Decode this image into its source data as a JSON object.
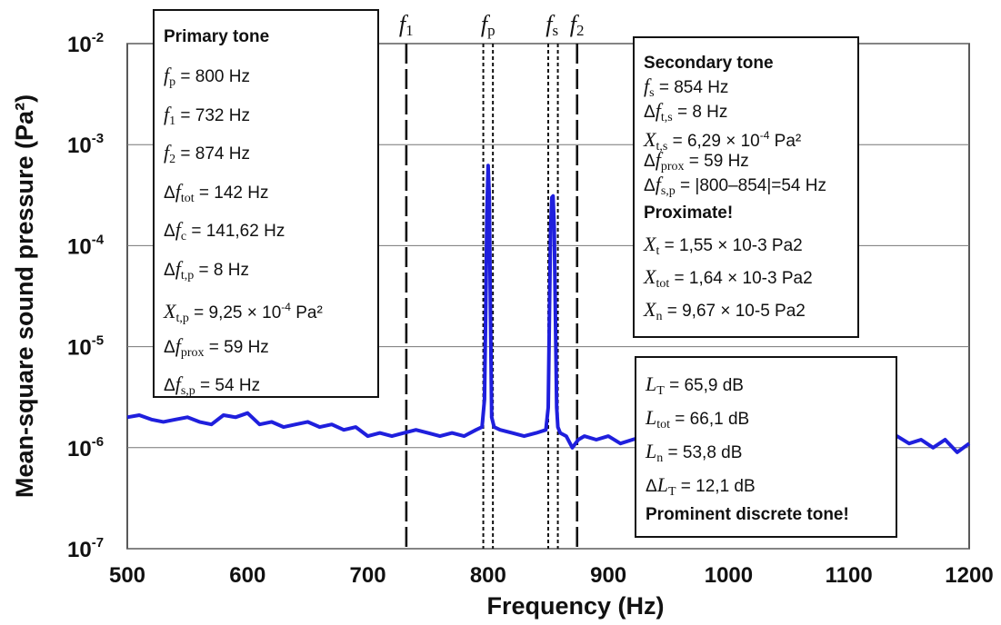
{
  "chart_data": {
    "type": "line",
    "xlabel": "Frequency (Hz)",
    "ylabel": "Mean-square sound pressure (Pa²)",
    "x_ticks": [
      "500",
      "600",
      "700",
      "800",
      "900",
      "1000",
      "1100",
      "1200"
    ],
    "y_ticks": [
      {
        "base": "10",
        "exp": "-2"
      },
      {
        "base": "10",
        "exp": "-3"
      },
      {
        "base": "10",
        "exp": "-4"
      },
      {
        "base": "10",
        "exp": "-5"
      },
      {
        "base": "10",
        "exp": "-6"
      },
      {
        "base": "10",
        "exp": "-7"
      }
    ],
    "xlim": [
      500,
      1200
    ],
    "ylim": [
      1e-07,
      0.01
    ],
    "y_scale": "log",
    "grid": "horizontal",
    "series_color": "#1f1fdd",
    "series": [
      {
        "name": "",
        "x": [
          500,
          510,
          520,
          530,
          540,
          550,
          560,
          570,
          580,
          590,
          600,
          610,
          620,
          630,
          640,
          650,
          660,
          670,
          680,
          690,
          700,
          710,
          720,
          730,
          740,
          750,
          760,
          770,
          780,
          790,
          795,
          797,
          798,
          799,
          800,
          801,
          802,
          803,
          805,
          810,
          820,
          830,
          840,
          848,
          850,
          851,
          852,
          853,
          854,
          855,
          856,
          857,
          858,
          860,
          865,
          870,
          875,
          880,
          890,
          900,
          910,
          920,
          930,
          940,
          950,
          960,
          970,
          980,
          990,
          1000,
          1010,
          1020,
          1030,
          1040,
          1050,
          1060,
          1070,
          1080,
          1090,
          1100,
          1110,
          1120,
          1130,
          1140,
          1150,
          1160,
          1170,
          1180,
          1190,
          1200
        ],
        "y": [
          2e-06,
          2.1e-06,
          1.9e-06,
          1.8e-06,
          1.9e-06,
          2e-06,
          1.8e-06,
          1.7e-06,
          2.1e-06,
          2e-06,
          2.2e-06,
          1.7e-06,
          1.8e-06,
          1.6e-06,
          1.7e-06,
          1.8e-06,
          1.6e-06,
          1.7e-06,
          1.5e-06,
          1.6e-06,
          1.3e-06,
          1.4e-06,
          1.3e-06,
          1.4e-06,
          1.5e-06,
          1.4e-06,
          1.3e-06,
          1.4e-06,
          1.3e-06,
          1.5e-06,
          1.6e-06,
          3e-06,
          2e-05,
          0.0002,
          0.00062,
          0.0003,
          2e-05,
          2e-06,
          1.6e-06,
          1.5e-06,
          1.4e-06,
          1.3e-06,
          1.4e-06,
          1.5e-06,
          2.5e-06,
          2e-05,
          0.00015,
          0.0003,
          0.00031,
          0.00015,
          2e-05,
          2.5e-06,
          1.6e-06,
          1.4e-06,
          1.3e-06,
          1e-06,
          1.2e-06,
          1.3e-06,
          1.2e-06,
          1.3e-06,
          1.1e-06,
          1.2e-06,
          1.3e-06,
          1.1e-06,
          1.2e-06,
          1.3e-06,
          1.2e-06,
          1.1e-06,
          1.2e-06,
          1.3e-06,
          1.2e-06,
          1.1e-06,
          1.2e-06,
          1.3e-06,
          1.1e-06,
          1.2e-06,
          1.1e-06,
          1.3e-06,
          1.2e-06,
          1.1e-06,
          1.2e-06,
          1.1e-06,
          1.2e-06,
          1.3e-06,
          1.1e-06,
          1.2e-06,
          1e-06,
          1.2e-06,
          9e-07,
          1.1e-06
        ]
      }
    ],
    "vertical_lines": [
      {
        "x": 732,
        "style": "dashed",
        "sym": "f",
        "sub": "1",
        "label_shown": true
      },
      {
        "x": 796,
        "style": "dotted",
        "sym": "",
        "sub": "",
        "label_shown": false
      },
      {
        "x": 800,
        "style": "none",
        "sym": "f",
        "sub": "p",
        "label_shown": true
      },
      {
        "x": 804,
        "style": "dotted",
        "sym": "",
        "sub": "",
        "label_shown": false
      },
      {
        "x": 850,
        "style": "dotted",
        "sym": "",
        "sub": "",
        "label_shown": false
      },
      {
        "x": 854,
        "style": "none",
        "sym": "f",
        "sub": "s",
        "label_shown": true
      },
      {
        "x": 858,
        "style": "dotted",
        "sym": "",
        "sub": "",
        "label_shown": false
      },
      {
        "x": 874,
        "style": "dashed",
        "sym": "f",
        "sub": "2",
        "label_shown": true
      }
    ]
  },
  "primary_box": {
    "title": "Primary tone",
    "rows": [
      {
        "pre": "",
        "sym": "f",
        "sub": "p",
        "val": " = 800 Hz",
        "sup": "",
        "post": ""
      },
      {
        "pre": "",
        "sym": "f",
        "sub": "1",
        "val": " = 732 Hz",
        "sup": "",
        "post": ""
      },
      {
        "pre": "",
        "sym": "f",
        "sub": "2",
        "val": " = 874 Hz",
        "sup": "",
        "post": ""
      },
      {
        "pre": "Δ",
        "sym": "f",
        "sub": "tot",
        "val": " = 142 Hz",
        "sup": "",
        "post": ""
      },
      {
        "pre": "Δ",
        "sym": "f",
        "sub": "c",
        "val": " = 141,62 Hz",
        "sup": "",
        "post": ""
      },
      {
        "pre": "Δ",
        "sym": "f",
        "sub": "t,p",
        "val": " = 8 Hz",
        "sup": "",
        "post": ""
      },
      {
        "pre": "",
        "sym": "X",
        "sub": "t,p",
        "val": " = 9,25 × 10",
        "sup": "-4",
        "post": " Pa²"
      },
      {
        "pre": "Δ",
        "sym": "f",
        "sub": "prox",
        "val": " = 59 Hz",
        "sup": "",
        "post": ""
      },
      {
        "pre": "Δ",
        "sym": "f",
        "sub": "s,p",
        "val": " = 54 Hz",
        "sup": "",
        "post": ""
      }
    ]
  },
  "secondary_box": {
    "title": "Secondary tone",
    "rows": [
      {
        "pre": "",
        "sym": "f",
        "sub": "s",
        "val": " = 854 Hz",
        "sup": "",
        "post": ""
      },
      {
        "pre": "Δ",
        "sym": "f",
        "sub": "t,s",
        "val": " = 8 Hz",
        "sup": "",
        "post": ""
      },
      {
        "pre": "",
        "sym": "X",
        "sub": "t,s",
        "val": " = 6,29 × 10",
        "sup": "-4",
        "post": " Pa²"
      },
      {
        "pre": "Δ",
        "sym": "f",
        "sub": "prox",
        "val": " = 59 Hz",
        "sup": "",
        "post": ""
      },
      {
        "pre": "Δ",
        "sym": "f",
        "sub": "s,p",
        "val": " = |800–854|=54 Hz",
        "sup": "",
        "post": ""
      }
    ],
    "note": "Proximate!",
    "rows2": [
      {
        "pre": "",
        "sym": "X",
        "sub": "t",
        "val": " = 1,55 × 10-3 Pa2",
        "sup": "",
        "post": ""
      },
      {
        "pre": "",
        "sym": "X",
        "sub": "tot",
        "val": " = 1,64 × 10-3 Pa2",
        "sup": "",
        "post": ""
      },
      {
        "pre": "",
        "sym": "X",
        "sub": "n",
        "val": " = 9,67 × 10-5 Pa2",
        "sup": "",
        "post": ""
      }
    ]
  },
  "level_box": {
    "rows": [
      {
        "pre": "",
        "sym": "L",
        "sub": "T",
        "val": " = 65,9 dB",
        "sup": "",
        "post": ""
      },
      {
        "pre": "",
        "sym": "L",
        "sub": "tot",
        "val": " = 66,1 dB",
        "sup": "",
        "post": ""
      },
      {
        "pre": "",
        "sym": "L",
        "sub": "n",
        "val": " = 53,8 dB",
        "sup": "",
        "post": ""
      },
      {
        "pre": "Δ",
        "sym": "L",
        "sub": "T",
        "val": " = 12,1 dB",
        "sup": "",
        "post": ""
      }
    ],
    "note": "Prominent discrete tone!"
  }
}
